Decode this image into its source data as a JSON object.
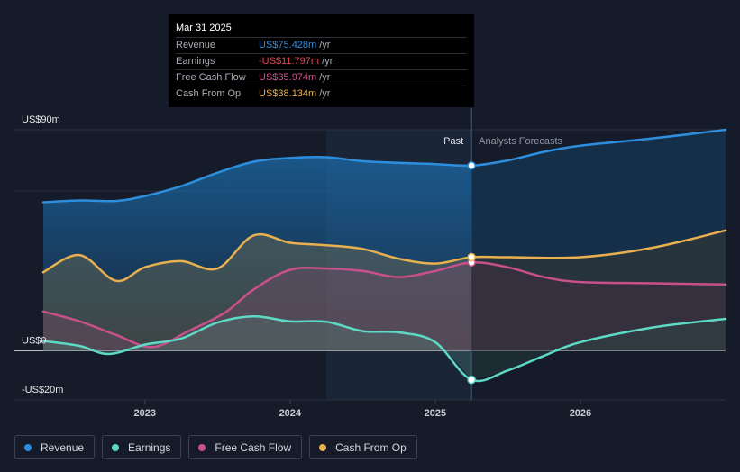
{
  "tooltip": {
    "date": "Mar 31 2025",
    "rows": [
      {
        "label": "Revenue",
        "value": "US$75.428m",
        "unit": "/yr",
        "color": "#2e8ede"
      },
      {
        "label": "Earnings",
        "value": "-US$11.797m",
        "unit": "/yr",
        "color": "#e5474f"
      },
      {
        "label": "Free Cash Flow",
        "value": "US$35.974m",
        "unit": "/yr",
        "color": "#d0578f"
      },
      {
        "label": "Cash From Op",
        "value": "US$38.134m",
        "unit": "/yr",
        "color": "#e8b04f"
      }
    ]
  },
  "legend": [
    {
      "label": "Revenue",
      "color": "#2e8ede"
    },
    {
      "label": "Earnings",
      "color": "#5ed9c6"
    },
    {
      "label": "Free Cash Flow",
      "color": "#c9508a"
    },
    {
      "label": "Cash From Op",
      "color": "#e8b04f"
    }
  ],
  "chart_data": {
    "type": "line",
    "title": "",
    "y_tick_labels": [
      "US$90m",
      "US$0",
      "-US$20m"
    ],
    "ylim": [
      -20,
      90
    ],
    "xlim": [
      2022.3,
      2027.0
    ],
    "x_tick_labels": [
      "2023",
      "2024",
      "2025",
      "2026"
    ],
    "x_ticks": [
      2023,
      2024,
      2025,
      2026
    ],
    "past_label": "Past",
    "forecast_label": "Analysts Forecasts",
    "past_forecast_divider_x": 2025.25,
    "highlight_start_x": 2024.25,
    "series": [
      {
        "name": "Revenue",
        "color": "#2e8ede",
        "points": [
          [
            2022.3,
            60.5
          ],
          [
            2022.55,
            61.2
          ],
          [
            2022.8,
            61.0
          ],
          [
            2023.0,
            63.0
          ],
          [
            2023.25,
            67.0
          ],
          [
            2023.5,
            72.5
          ],
          [
            2023.75,
            77.0
          ],
          [
            2024.0,
            78.5
          ],
          [
            2024.25,
            78.8
          ],
          [
            2024.5,
            77.2
          ],
          [
            2024.75,
            76.5
          ],
          [
            2025.0,
            76.0
          ],
          [
            2025.25,
            75.4
          ],
          [
            2025.5,
            77.5
          ],
          [
            2025.75,
            81.0
          ],
          [
            2026.0,
            83.5
          ],
          [
            2026.5,
            86.5
          ],
          [
            2027.0,
            90.0
          ]
        ]
      },
      {
        "name": "Earnings",
        "color": "#5ed9c6",
        "points": [
          [
            2022.3,
            4.0
          ],
          [
            2022.55,
            2.0
          ],
          [
            2022.75,
            -1.3
          ],
          [
            2023.0,
            2.5
          ],
          [
            2023.25,
            5.0
          ],
          [
            2023.5,
            11.5
          ],
          [
            2023.75,
            14.0
          ],
          [
            2024.0,
            12.0
          ],
          [
            2024.25,
            11.8
          ],
          [
            2024.5,
            8.0
          ],
          [
            2024.75,
            7.5
          ],
          [
            2025.0,
            3.5
          ],
          [
            2025.25,
            -11.8
          ],
          [
            2025.5,
            -8.0
          ],
          [
            2025.75,
            -2.0
          ],
          [
            2026.0,
            3.5
          ],
          [
            2026.5,
            9.5
          ],
          [
            2027.0,
            13.0
          ]
        ]
      },
      {
        "name": "Free Cash Flow",
        "color": "#c9508a",
        "points": [
          [
            2022.3,
            16.0
          ],
          [
            2022.55,
            12.0
          ],
          [
            2022.8,
            6.5
          ],
          [
            2023.05,
            1.5
          ],
          [
            2023.3,
            8.0
          ],
          [
            2023.55,
            15.5
          ],
          [
            2023.75,
            25.0
          ],
          [
            2024.0,
            33.0
          ],
          [
            2024.25,
            33.5
          ],
          [
            2024.5,
            32.5
          ],
          [
            2024.75,
            30.0
          ],
          [
            2025.0,
            32.5
          ],
          [
            2025.25,
            36.0
          ],
          [
            2025.5,
            34.0
          ],
          [
            2025.75,
            30.0
          ],
          [
            2026.0,
            28.0
          ],
          [
            2026.5,
            27.5
          ],
          [
            2027.0,
            27.0
          ]
        ]
      },
      {
        "name": "Cash From Op",
        "color": "#e8b04f",
        "points": [
          [
            2022.3,
            32.0
          ],
          [
            2022.55,
            39.0
          ],
          [
            2022.8,
            28.5
          ],
          [
            2023.0,
            34.0
          ],
          [
            2023.25,
            36.5
          ],
          [
            2023.5,
            33.5
          ],
          [
            2023.75,
            47.0
          ],
          [
            2024.0,
            44.0
          ],
          [
            2024.25,
            43.0
          ],
          [
            2024.5,
            41.5
          ],
          [
            2024.75,
            37.5
          ],
          [
            2025.0,
            35.5
          ],
          [
            2025.25,
            38.1
          ],
          [
            2025.5,
            38.1
          ],
          [
            2026.0,
            38.1
          ],
          [
            2026.5,
            42.0
          ],
          [
            2027.0,
            49.0
          ]
        ]
      }
    ]
  }
}
